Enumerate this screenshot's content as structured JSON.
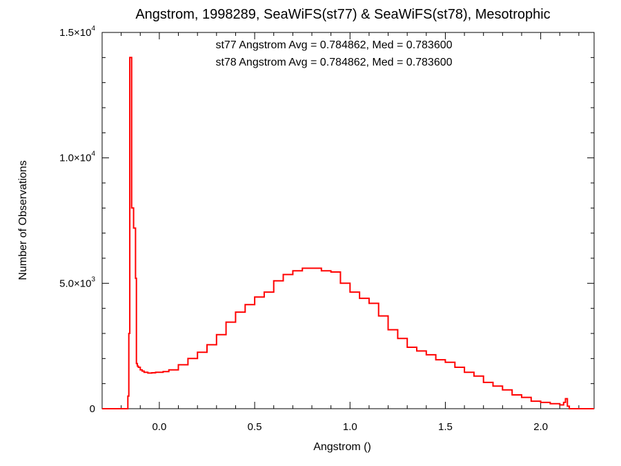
{
  "chart_data": {
    "type": "line",
    "title": "Angstrom, 1998289, SeaWiFS(st77) & SeaWiFS(st78), Mesotrophic",
    "xlabel": "Angstrom ()",
    "ylabel": "Number of Observations",
    "xlim": [
      -0.3,
      2.28
    ],
    "ylim": [
      0,
      15000
    ],
    "xticks": [
      {
        "value": 0.0,
        "label": "0.0"
      },
      {
        "value": 0.5,
        "label": "0.5"
      },
      {
        "value": 1.0,
        "label": "1.0"
      },
      {
        "value": 1.5,
        "label": "1.5"
      },
      {
        "value": 2.0,
        "label": "2.0"
      }
    ],
    "yticks": [
      {
        "value": 0,
        "mant": "0",
        "exp": ""
      },
      {
        "value": 5000,
        "mant": "5.0×10",
        "exp": "3"
      },
      {
        "value": 10000,
        "mant": "1.0×10",
        "exp": "4"
      },
      {
        "value": 15000,
        "mant": "1.5×10",
        "exp": "4"
      }
    ],
    "annotations": [
      {
        "text": "st77 Angstrom Avg = 0.784862, Med = 0.783600",
        "color": "#000000"
      },
      {
        "text": "st78 Angstrom Avg = 0.784862, Med = 0.783600",
        "color": "#ff0000"
      }
    ],
    "series": [
      {
        "color": "#ff0000",
        "style": "step",
        "x": [
          -0.3,
          -0.17,
          -0.165,
          -0.16,
          -0.155,
          -0.15,
          -0.145,
          -0.14,
          -0.135,
          -0.13,
          -0.125,
          -0.12,
          -0.115,
          -0.11,
          -0.1,
          -0.09,
          -0.08,
          -0.06,
          -0.04,
          -0.02,
          0.0,
          0.02,
          0.05,
          0.1,
          0.15,
          0.2,
          0.25,
          0.3,
          0.35,
          0.4,
          0.45,
          0.5,
          0.55,
          0.6,
          0.65,
          0.7,
          0.75,
          0.8,
          0.85,
          0.9,
          0.95,
          1.0,
          1.05,
          1.1,
          1.15,
          1.2,
          1.25,
          1.3,
          1.35,
          1.4,
          1.45,
          1.5,
          1.55,
          1.6,
          1.65,
          1.7,
          1.75,
          1.8,
          1.85,
          1.9,
          1.95,
          2.0,
          2.05,
          2.1,
          2.12,
          2.13,
          2.14,
          2.15,
          2.16,
          2.28
        ],
        "y": [
          0,
          0,
          500,
          3000,
          14000,
          14000,
          8000,
          8000,
          7200,
          7200,
          5200,
          1800,
          1700,
          1650,
          1550,
          1500,
          1450,
          1420,
          1430,
          1450,
          1450,
          1480,
          1550,
          1750,
          2000,
          2250,
          2550,
          2950,
          3450,
          3850,
          4150,
          4450,
          4650,
          5100,
          5350,
          5500,
          5600,
          5600,
          5500,
          5450,
          5000,
          4650,
          4400,
          4200,
          3700,
          3150,
          2800,
          2450,
          2300,
          2150,
          1950,
          1850,
          1650,
          1450,
          1300,
          1050,
          900,
          750,
          550,
          450,
          300,
          250,
          200,
          150,
          250,
          400,
          100,
          0,
          0,
          0
        ]
      }
    ]
  }
}
